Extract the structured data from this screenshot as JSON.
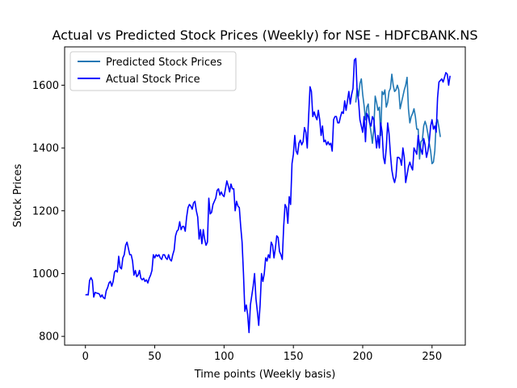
{
  "chart_data": {
    "type": "line",
    "title": "Actual vs Predicted Stock Prices (Weekly) for NSE - HDFCBANK.NS",
    "xlabel": "Time points (Weekly basis)",
    "ylabel": "Stock Prices",
    "xlim": [
      -15,
      274
    ],
    "ylim": [
      772,
      1722
    ],
    "xticks": [
      0,
      50,
      100,
      150,
      200,
      250
    ],
    "yticks": [
      800,
      1000,
      1200,
      1400,
      1600
    ],
    "grid": false,
    "legend_position": "top-left",
    "series": [
      {
        "name": "Predicted Stock Prices",
        "color": "#1f77b4",
        "x_start": 195,
        "values": [
          1545,
          1590,
          1565,
          1605,
          1620,
          1570,
          1535,
          1490,
          1530,
          1540,
          1480,
          1450,
          1415,
          1460,
          1565,
          1545,
          1520,
          1530,
          1440,
          1580,
          1570,
          1585,
          1530,
          1545,
          1580,
          1590,
          1635,
          1600,
          1580,
          1585,
          1600,
          1585,
          1525,
          1545,
          1565,
          1585,
          1600,
          1625,
          1525,
          1480,
          1500,
          1510,
          1525,
          1500,
          1460,
          1460,
          1365,
          1420,
          1425,
          1470,
          1485,
          1470,
          1445,
          1415,
          1390,
          1350,
          1355,
          1390,
          1480,
          1490,
          1465,
          1435
        ]
      },
      {
        "name": "Actual Stock Price",
        "color": "#0000ff",
        "x_start": 0,
        "values": [
          932,
          933,
          932,
          978,
          987,
          978,
          925,
          940,
          938,
          937,
          935,
          925,
          932,
          923,
          920,
          945,
          955,
          970,
          975,
          960,
          975,
          1005,
          1010,
          1005,
          1055,
          1020,
          1015,
          1050,
          1060,
          1090,
          1100,
          1080,
          1060,
          1060,
          1040,
          995,
          1010,
          990,
          995,
          1010,
          985,
          980,
          985,
          975,
          980,
          970,
          985,
          995,
          1010,
          1060,
          1050,
          1060,
          1055,
          1060,
          1050,
          1045,
          1060,
          1060,
          1050,
          1045,
          1060,
          1045,
          1040,
          1060,
          1075,
          1120,
          1135,
          1140,
          1165,
          1140,
          1150,
          1150,
          1135,
          1180,
          1210,
          1220,
          1215,
          1205,
          1225,
          1230,
          1200,
          1180,
          1110,
          1140,
          1095,
          1140,
          1110,
          1090,
          1100,
          1240,
          1190,
          1195,
          1220,
          1230,
          1240,
          1265,
          1270,
          1250,
          1260,
          1250,
          1245,
          1270,
          1295,
          1280,
          1260,
          1285,
          1270,
          1270,
          1200,
          1230,
          1215,
          1210,
          1150,
          1100,
          1000,
          880,
          900,
          870,
          812,
          900,
          930,
          960,
          1000,
          920,
          880,
          835,
          900,
          1000,
          975,
          1000,
          1050,
          1040,
          1060,
          1050,
          1100,
          1090,
          1050,
          1080,
          1120,
          1115,
          1070,
          1060,
          1045,
          1150,
          1220,
          1210,
          1160,
          1245,
          1220,
          1350,
          1380,
          1440,
          1390,
          1380,
          1415,
          1425,
          1410,
          1420,
          1465,
          1450,
          1400,
          1500,
          1595,
          1580,
          1500,
          1515,
          1500,
          1490,
          1520,
          1490,
          1440,
          1470,
          1420,
          1425,
          1410,
          1420,
          1410,
          1415,
          1390,
          1490,
          1500,
          1500,
          1480,
          1480,
          1500,
          1515,
          1510,
          1550,
          1520,
          1550,
          1580,
          1540,
          1570,
          1590,
          1680,
          1685,
          1580,
          1550,
          1490,
          1470,
          1450,
          1500,
          1420,
          1510,
          1500,
          1480,
          1470,
          1500,
          1490,
          1445,
          1400,
          1440,
          1400,
          1480,
          1450,
          1370,
          1350,
          1400,
          1480,
          1445,
          1380,
          1330,
          1305,
          1290,
          1310,
          1370,
          1370,
          1365,
          1345,
          1400,
          1370,
          1290,
          1315,
          1340,
          1355,
          1340,
          1330,
          1400,
          1390,
          1380,
          1440,
          1410,
          1395,
          1380,
          1430,
          1410,
          1370,
          1390,
          1420,
          1470,
          1490,
          1460,
          1470,
          1450,
          1560,
          1610,
          1615,
          1620,
          1610,
          1625,
          1640,
          1635,
          1600,
          1630
        ]
      }
    ]
  }
}
